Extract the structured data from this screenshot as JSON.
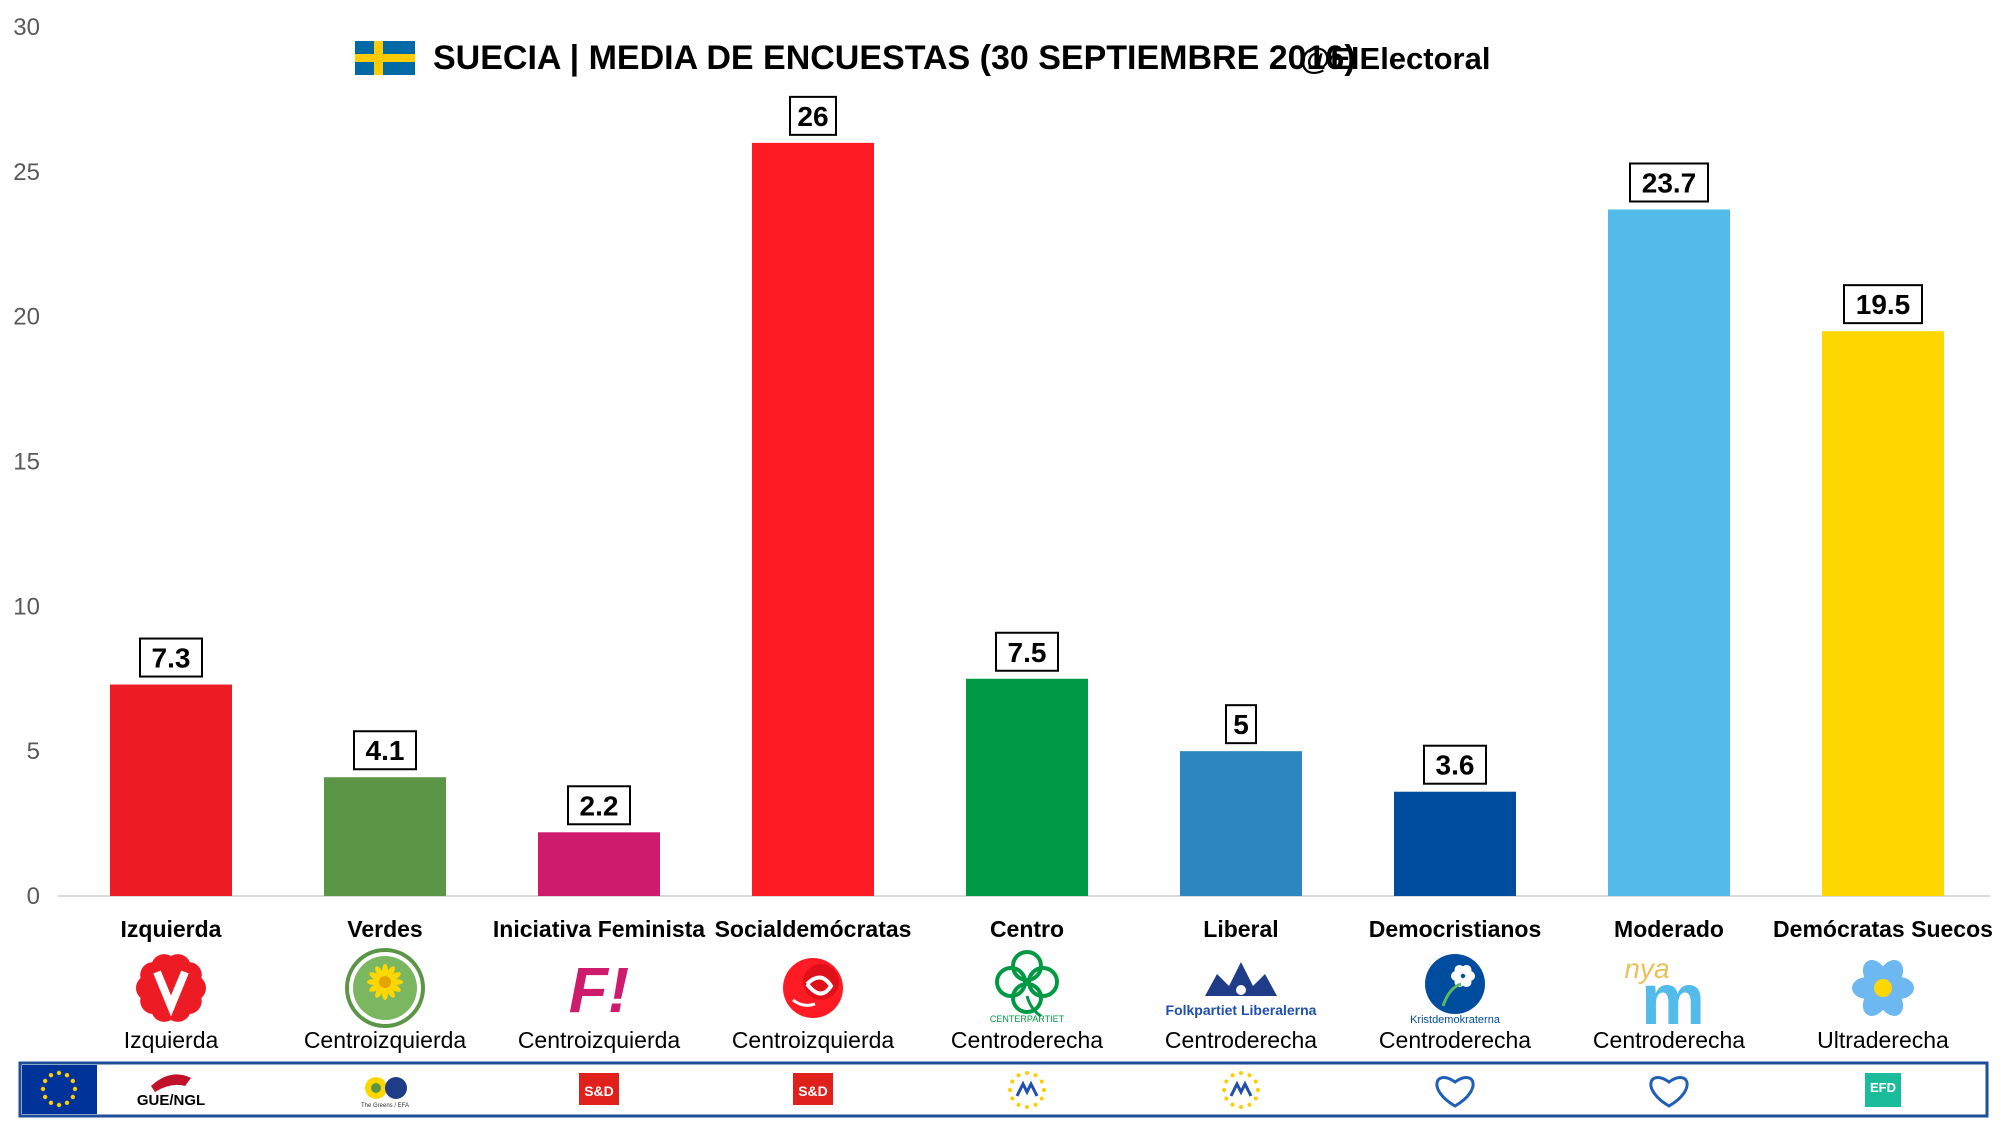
{
  "chart_data": {
    "type": "bar",
    "title": "SUECIA | MEDIA DE ENCUESTAS (30 SEPTIEMBRE 2016)",
    "handle": "@ElElectoral",
    "ylim": [
      0,
      30
    ],
    "yticks": [
      0,
      5,
      10,
      15,
      20,
      25,
      30
    ],
    "grid": false,
    "categories": [
      "Izquierda",
      "Verdes",
      "Iniciativa Feminista",
      "Socialdemócratas",
      "Centro",
      "Liberal",
      "Democristianos",
      "Moderado",
      "Demócratas Suecos"
    ],
    "values": [
      7.3,
      4.1,
      2.2,
      26,
      7.5,
      5,
      3.6,
      23.7,
      19.5
    ],
    "value_labels": [
      "7.3",
      "4.1",
      "2.2",
      "26",
      "7.5",
      "5",
      "3.6",
      "23.7",
      "19.5"
    ],
    "ideology": [
      "Izquierda",
      "Centroizquierda",
      "Centroizquierda",
      "Centroizquierda",
      "Centroderecha",
      "Centroderecha",
      "Centroderecha",
      "Centroderecha",
      "Ultraderecha"
    ],
    "colors": [
      "#ED1C24",
      "#5A9646",
      "#CE1B6C",
      "#FF1B24",
      "#009A44",
      "#2E86C1",
      "#004C9E",
      "#52BBEA",
      "#FFD700"
    ],
    "logos": [
      "v-party-logo",
      "mp-sunflower-logo",
      "fi-logo",
      "sap-rose-logo",
      "clover-logo",
      "liberal-star-logo",
      "kd-anemone-logo",
      "nya-m-logo",
      "sd-anemone-logo"
    ],
    "logo_texts": [
      "",
      "",
      "F!",
      "",
      "CENTERPARTIET",
      "Folkpartiet Liberalerna",
      "Kristdemokraterna",
      "nya",
      ""
    ],
    "eu_groups": [
      "GUE/NGL",
      "The Greens / EFA",
      "S&D",
      "S&D",
      "ALDE",
      "ALDE",
      "EPP",
      "EPP",
      "EFD"
    ]
  }
}
